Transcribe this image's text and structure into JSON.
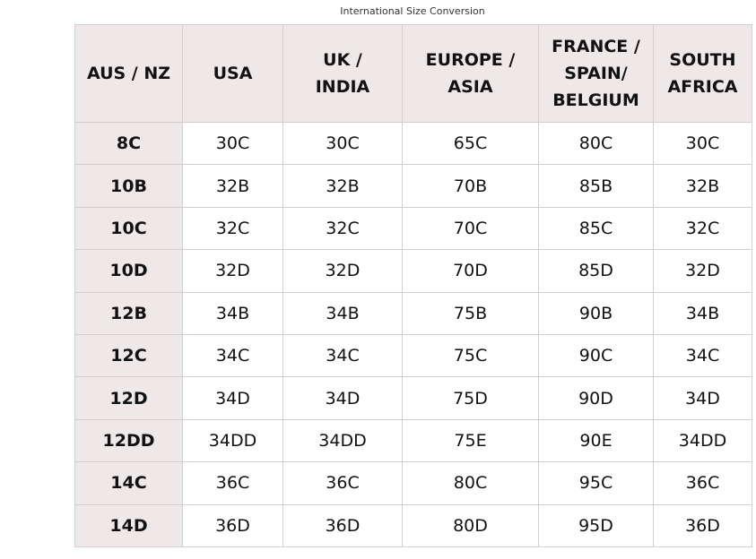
{
  "caption": "International Size Conversion",
  "table": {
    "headers": [
      "AUS / NZ",
      "USA",
      "UK / INDIA",
      "EUROPE / ASIA",
      "FRANCE / SPAIN/ BELGIUM",
      "SOUTH AFRICA"
    ],
    "rows": [
      [
        "8C",
        "30C",
        "30C",
        "65C",
        "80C",
        "30C"
      ],
      [
        "10B",
        "32B",
        "32B",
        "70B",
        "85B",
        "32B"
      ],
      [
        "10C",
        "32C",
        "32C",
        "70C",
        "85C",
        "32C"
      ],
      [
        "10D",
        "32D",
        "32D",
        "70D",
        "85D",
        "32D"
      ],
      [
        "12B",
        "34B",
        "34B",
        "75B",
        "90B",
        "34B"
      ],
      [
        "12C",
        "34C",
        "34C",
        "75C",
        "90C",
        "34C"
      ],
      [
        "12D",
        "34D",
        "34D",
        "75D",
        "90D",
        "34D"
      ],
      [
        "12DD",
        "34DD",
        "34DD",
        "75E",
        "90E",
        "34DD"
      ],
      [
        "14C",
        "36C",
        "36C",
        "80C",
        "95C",
        "36C"
      ],
      [
        "14D",
        "36D",
        "36D",
        "80D",
        "95D",
        "36D"
      ]
    ]
  },
  "colors": {
    "header_bg": "#efe8e8",
    "border": "#d4cfcf"
  }
}
